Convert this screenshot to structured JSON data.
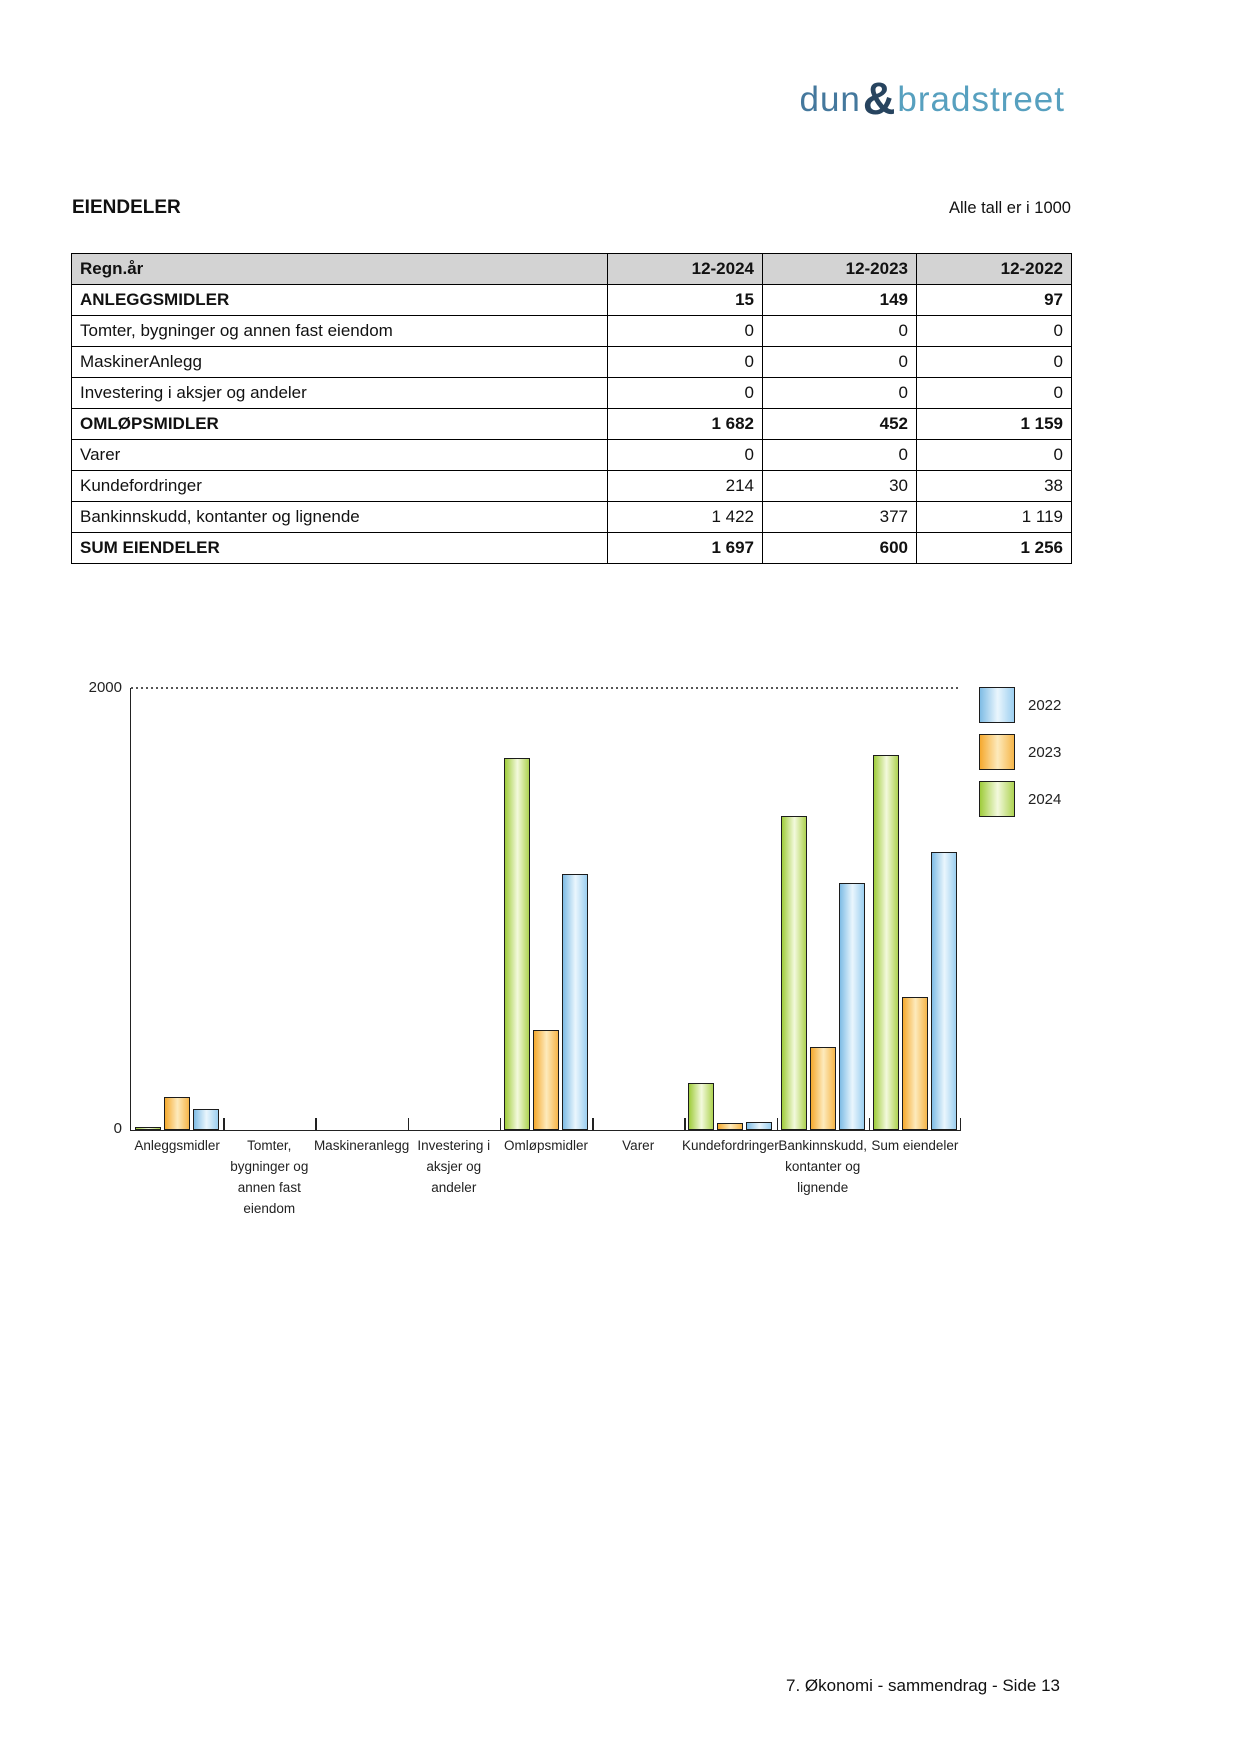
{
  "logo": {
    "part1": "dun",
    "amp": "&",
    "part2": "bradstreet"
  },
  "header": {
    "title": "EIENDELER",
    "note": "Alle tall er i 1000"
  },
  "table": {
    "header": {
      "label": "Regn.år",
      "cols": [
        "12-2024",
        "12-2023",
        "12-2022"
      ]
    },
    "rows": [
      {
        "label": "ANLEGGSMIDLER",
        "bold": true,
        "values": [
          "15",
          "149",
          "97"
        ]
      },
      {
        "label": "Tomter, bygninger og annen fast eiendom",
        "bold": false,
        "values": [
          "0",
          "0",
          "0"
        ]
      },
      {
        "label": "MaskinerAnlegg",
        "bold": false,
        "values": [
          "0",
          "0",
          "0"
        ]
      },
      {
        "label": "Investering i aksjer og andeler",
        "bold": false,
        "values": [
          "0",
          "0",
          "0"
        ]
      },
      {
        "label": "OMLØPSMIDLER",
        "bold": true,
        "values": [
          "1 682",
          "452",
          "1 159"
        ]
      },
      {
        "label": "Varer",
        "bold": false,
        "values": [
          "0",
          "0",
          "0"
        ]
      },
      {
        "label": "Kundefordringer",
        "bold": false,
        "values": [
          "214",
          "30",
          "38"
        ]
      },
      {
        "label": "Bankinnskudd, kontanter og lignende",
        "bold": false,
        "values": [
          "1 422",
          "377",
          "1 119"
        ]
      },
      {
        "label": "SUM EIENDELER",
        "bold": true,
        "values": [
          "1 697",
          "600",
          "1 256"
        ]
      }
    ]
  },
  "chart_data": {
    "type": "bar",
    "title": "",
    "categories": [
      "Anleggsmidler",
      "Tomter, bygninger og annen fast eiendom",
      "Maskineranlegg",
      "Investering i aksjer og andeler",
      "Omløpsmidler",
      "Varer",
      "Kundefordringer",
      "Bankinnskudd, kontanter og lignende",
      "Sum eiendeler"
    ],
    "categories_lines": [
      [
        "Anleggsmidler"
      ],
      [
        "Tomter,",
        "bygninger og",
        "annen fast",
        "eiendom"
      ],
      [
        "Maskineranlegg"
      ],
      [
        "Investering i",
        "aksjer og",
        "andeler"
      ],
      [
        "Omløpsmidler"
      ],
      [
        "Varer"
      ],
      [
        "Kundefordringer"
      ],
      [
        "Bankinnskudd,",
        "kontanter og",
        "lignende"
      ],
      [
        "Sum eiendeler"
      ]
    ],
    "series": [
      {
        "name": "2022",
        "color": "#7fbce5",
        "color_light": "#eaf6fd",
        "color_mid": "#9ccff0",
        "values": [
          97,
          0,
          0,
          0,
          1159,
          0,
          38,
          1119,
          1256
        ]
      },
      {
        "name": "2023",
        "color": "#f5a92e",
        "color_light": "#fdeabc",
        "color_mid": "#f6b64a",
        "values": [
          149,
          0,
          0,
          0,
          452,
          0,
          30,
          377,
          600
        ]
      },
      {
        "name": "2024",
        "color": "#9fcc3b",
        "color_light": "#f3f9dd",
        "color_mid": "#aed352",
        "values": [
          15,
          0,
          0,
          0,
          1682,
          0,
          214,
          1422,
          1697
        ]
      }
    ],
    "draw_order": [
      "2024",
      "2023",
      "2022"
    ],
    "xlabel": "",
    "ylabel": "",
    "ylim": [
      0,
      2000
    ],
    "axis": {
      "max_label": "2000",
      "min_label": "0"
    },
    "grid": "dashed-top-only",
    "legend_position": "top-right"
  },
  "footer": {
    "text": "7. Økonomi - sammendrag - Side 13"
  }
}
